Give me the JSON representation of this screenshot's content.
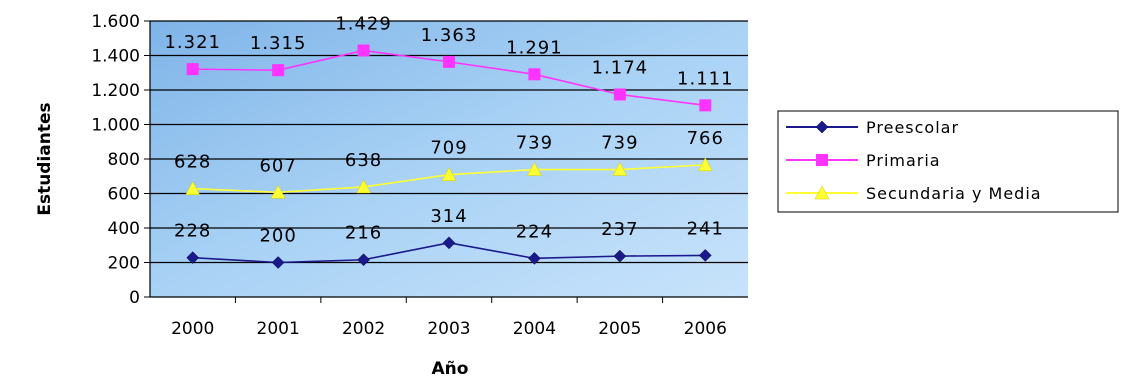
{
  "chart_data": {
    "type": "line",
    "title": "",
    "xlabel": "Año",
    "ylabel": "Estudiantes",
    "categories": [
      "2000",
      "2001",
      "2002",
      "2003",
      "2004",
      "2005",
      "2006"
    ],
    "ylim": [
      0,
      1600
    ],
    "yticks": [
      0,
      200,
      400,
      600,
      800,
      1000,
      1200,
      1400,
      1600
    ],
    "ytick_labels": [
      "0",
      "200",
      "400",
      "600",
      "800",
      "1.000",
      "1.200",
      "1.400",
      "1.600"
    ],
    "grid": true,
    "legend_position": "right",
    "plot_background": "#9ec8ee",
    "series": [
      {
        "name": "Preescolar",
        "values": [
          228,
          200,
          216,
          314,
          224,
          237,
          241
        ],
        "value_labels": [
          "228",
          "200",
          "216",
          "314",
          "224",
          "237",
          "241"
        ],
        "color": "#1a1a8c",
        "marker": "diamond"
      },
      {
        "name": "Primaria",
        "values": [
          1321,
          1315,
          1429,
          1363,
          1291,
          1174,
          1111
        ],
        "value_labels": [
          "1.321",
          "1.315",
          "1.429",
          "1.363",
          "1.291",
          "1.174",
          "1.111"
        ],
        "color": "#ff33ff",
        "marker": "square"
      },
      {
        "name": "Secundaria y Media",
        "values": [
          628,
          607,
          638,
          709,
          739,
          739,
          766
        ],
        "value_labels": [
          "628",
          "607",
          "638",
          "709",
          "739",
          "739",
          "766"
        ],
        "color": "#ffff33",
        "marker": "triangle"
      }
    ]
  }
}
